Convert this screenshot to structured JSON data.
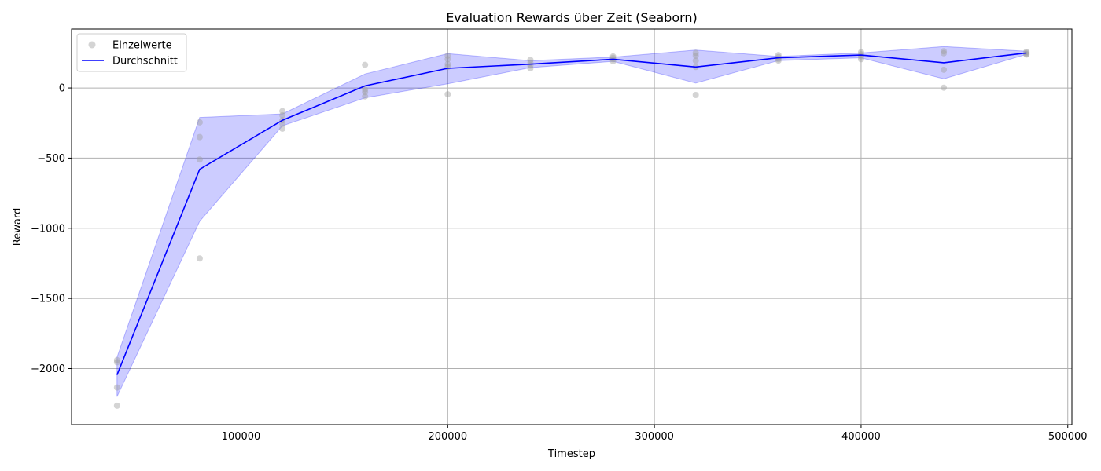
{
  "chart_data": {
    "type": "line",
    "title": "Evaluation Rewards über Zeit (Seaborn)",
    "xlabel": "Timestep",
    "ylabel": "Reward",
    "xlim": [
      18000,
      502000
    ],
    "ylim": [
      -2400,
      420
    ],
    "xticks": [
      100000,
      200000,
      300000,
      400000,
      500000
    ],
    "xtick_labels": [
      "100000",
      "200000",
      "300000",
      "400000",
      "500000"
    ],
    "yticks": [
      -2000,
      -1500,
      -1000,
      -500,
      0
    ],
    "ytick_labels": [
      "−2000",
      "−1500",
      "−1000",
      "−500",
      "0"
    ],
    "grid": true,
    "legend_position": "upper-left",
    "colors": {
      "mean_line": "#0000ff",
      "band_fill": "#0000ff",
      "points": "#a0a0a0"
    },
    "series": [
      {
        "name": "Einzelwerte",
        "kind": "scatter",
        "points": [
          [
            40000,
            -1940
          ],
          [
            40000,
            -1955
          ],
          [
            40000,
            -2135
          ],
          [
            40000,
            -2265
          ],
          [
            80000,
            -245
          ],
          [
            80000,
            -350
          ],
          [
            80000,
            -510
          ],
          [
            80000,
            -1215
          ],
          [
            120000,
            -165
          ],
          [
            120000,
            -195
          ],
          [
            120000,
            -230
          ],
          [
            120000,
            -255
          ],
          [
            120000,
            -290
          ],
          [
            160000,
            165
          ],
          [
            160000,
            -10
          ],
          [
            160000,
            -30
          ],
          [
            160000,
            -60
          ],
          [
            200000,
            230
          ],
          [
            200000,
            205
          ],
          [
            200000,
            170
          ],
          [
            200000,
            150
          ],
          [
            200000,
            -45
          ],
          [
            240000,
            200
          ],
          [
            240000,
            180
          ],
          [
            240000,
            160
          ],
          [
            240000,
            140
          ],
          [
            280000,
            225
          ],
          [
            280000,
            215
          ],
          [
            280000,
            205
          ],
          [
            280000,
            190
          ],
          [
            320000,
            250
          ],
          [
            320000,
            230
          ],
          [
            320000,
            195
          ],
          [
            320000,
            150
          ],
          [
            320000,
            -50
          ],
          [
            360000,
            235
          ],
          [
            360000,
            220
          ],
          [
            360000,
            205
          ],
          [
            360000,
            195
          ],
          [
            400000,
            255
          ],
          [
            400000,
            240
          ],
          [
            400000,
            225
          ],
          [
            400000,
            205
          ],
          [
            440000,
            262
          ],
          [
            440000,
            248
          ],
          [
            440000,
            130
          ],
          [
            440000,
            2
          ],
          [
            480000,
            258
          ],
          [
            480000,
            250
          ],
          [
            480000,
            242
          ],
          [
            480000,
            238
          ]
        ]
      },
      {
        "name": "Durchschnitt",
        "kind": "line",
        "x": [
          40000,
          80000,
          120000,
          160000,
          200000,
          240000,
          280000,
          320000,
          360000,
          400000,
          440000,
          480000
        ],
        "y": [
          -2045,
          -580,
          -230,
          15,
          140,
          170,
          205,
          150,
          215,
          235,
          180,
          250
        ],
        "ci_low": [
          -2200,
          -950,
          -270,
          -70,
          30,
          145,
          190,
          35,
          195,
          215,
          65,
          240
        ],
        "ci_high": [
          -1920,
          -210,
          -185,
          100,
          245,
          195,
          220,
          270,
          225,
          250,
          295,
          262
        ]
      }
    ]
  }
}
